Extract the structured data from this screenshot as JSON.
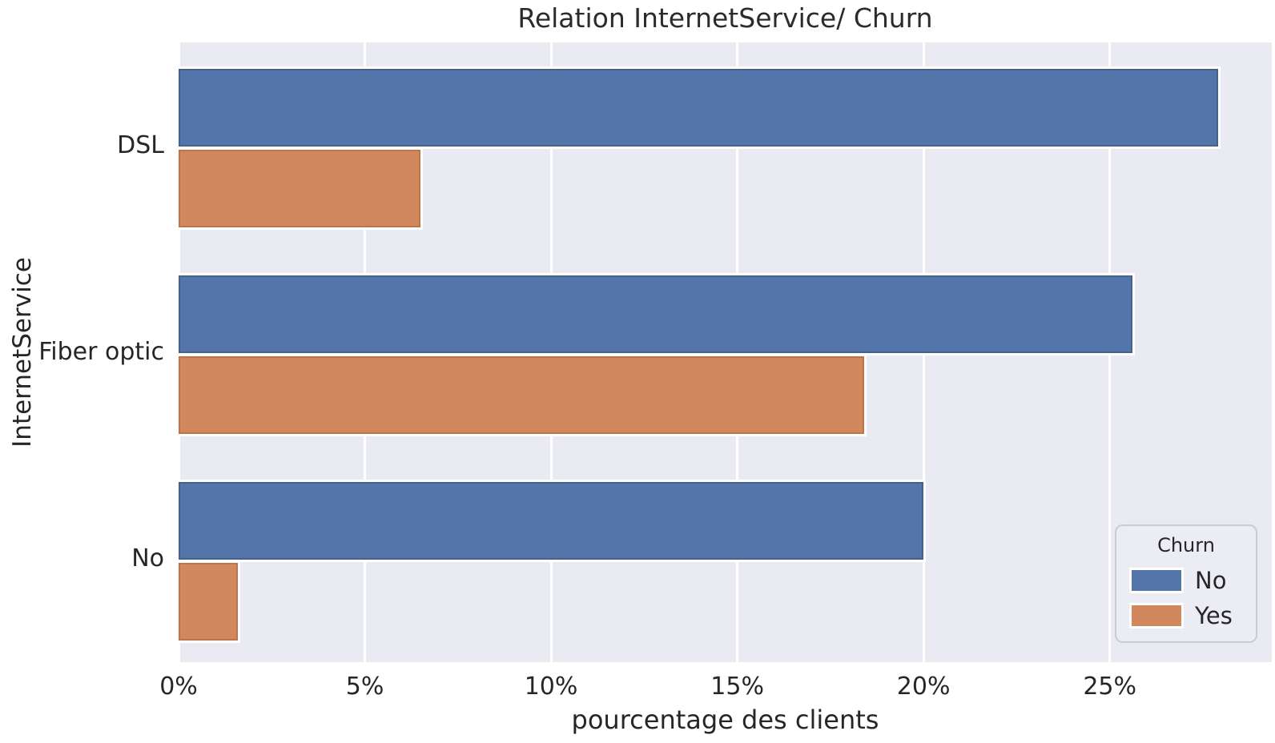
{
  "figure": {
    "background": "#ffffff",
    "plot_background": "#E9EAF2",
    "grid_color": "#ffffff",
    "text_color": "#262626"
  },
  "chart_data": {
    "type": "bar",
    "orientation": "horizontal",
    "title": "Relation InternetService/ Churn",
    "xlabel": "pourcentage des clients",
    "ylabel": "InternetService",
    "categories": [
      "DSL",
      "Fiber optic",
      "No"
    ],
    "series": [
      {
        "name": "No",
        "color": "#5475A9",
        "edge_color": "#45618E",
        "values": [
          27.9,
          25.6,
          20.0
        ]
      },
      {
        "name": "Yes",
        "color": "#D0885C",
        "edge_color": "#BE7448",
        "values": [
          6.5,
          18.4,
          1.6
        ]
      }
    ],
    "xlim": [
      0,
      29.35
    ],
    "xticks": [
      {
        "value": 0,
        "label": "0%"
      },
      {
        "value": 5,
        "label": "5%"
      },
      {
        "value": 10,
        "label": "10%"
      },
      {
        "value": 15,
        "label": "15%"
      },
      {
        "value": 20,
        "label": "20%"
      },
      {
        "value": 25,
        "label": "25%"
      }
    ],
    "grid": true,
    "legend": {
      "title": "Churn",
      "position": "lower right",
      "entries": [
        "No",
        "Yes"
      ]
    }
  }
}
